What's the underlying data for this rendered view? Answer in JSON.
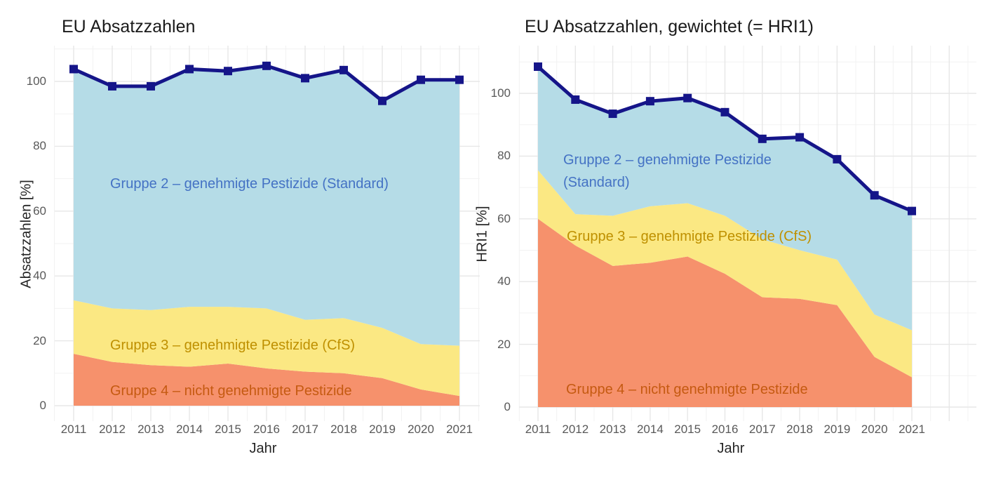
{
  "colors": {
    "total_line": "#151589",
    "area_gruppe2": "#B5DCE7",
    "area_gruppe3": "#FBE883",
    "area_gruppe4": "#F6916C",
    "label_gruppe2": "#4472C4",
    "label_gruppe3": "#BF9000",
    "label_gruppe4": "#C55A11",
    "axis_text": "#595959",
    "title_text": "#1A1A1A",
    "grid_major": "#E7E7E7",
    "grid_minor": "#F2F2F2"
  },
  "chart_data": [
    {
      "type": "area",
      "title": "EU Absatzzahlen",
      "xlabel": "Jahr",
      "ylabel": "Absatzzahlen [%]",
      "x": [
        2011,
        2012,
        2013,
        2014,
        2015,
        2016,
        2017,
        2018,
        2019,
        2020,
        2021
      ],
      "y_ticks": [
        0,
        20,
        40,
        60,
        80,
        100
      ],
      "ylim": [
        0,
        110
      ],
      "grid": true,
      "legend_position": "labels inside areas",
      "series": [
        {
          "name": "Gruppe 4 – nicht genehmigte Pestizide",
          "color": "#F6916C",
          "values": [
            16,
            13.5,
            12.5,
            12,
            13,
            11.5,
            10.5,
            10,
            8.5,
            5,
            3
          ],
          "stack_top": [
            16,
            13.5,
            12.5,
            12,
            13,
            11.5,
            10.5,
            10,
            8.5,
            5,
            3
          ]
        },
        {
          "name": "Gruppe 3 – genehmigte Pestizide (CfS)",
          "color": "#FBE883",
          "values": [
            16.5,
            16.5,
            17,
            18.5,
            17.5,
            18.5,
            16,
            17,
            15.5,
            14,
            15.5
          ],
          "stack_top": [
            32.5,
            30,
            29.5,
            30.5,
            30.5,
            30,
            26.5,
            27,
            24,
            19,
            18.5
          ]
        },
        {
          "name": "Gruppe 2 – genehmigte Pestizide (Standard)",
          "color": "#B5DCE7",
          "values": [
            71.3,
            68.5,
            69,
            73.3,
            72.7,
            74.8,
            74.5,
            76.5,
            70,
            81.5,
            82
          ],
          "stack_top": [
            103.8,
            98.5,
            98.5,
            103.8,
            103.2,
            104.8,
            101,
            103.5,
            94,
            100.5,
            100.5
          ]
        }
      ],
      "total_line": {
        "color": "#151589",
        "values": [
          103.8,
          98.5,
          98.5,
          103.8,
          103.2,
          104.8,
          101,
          103.5,
          94,
          100.5,
          100.5
        ]
      },
      "annotations": [
        {
          "text": "Gruppe 2 – genehmigte Pestizide (Standard)",
          "color": "#4472C4"
        },
        {
          "text": "Gruppe 3 – genehmigte Pestizide (CfS)",
          "color": "#BF9000"
        },
        {
          "text": "Gruppe 4 – nicht genehmigte Pestizide",
          "color": "#C55A11"
        }
      ]
    },
    {
      "type": "area",
      "title": "EU Absatzzahlen, gewichtet (= HRI1)",
      "xlabel": "Jahr",
      "ylabel": "HRI1 [%]",
      "x": [
        2011,
        2012,
        2013,
        2014,
        2015,
        2016,
        2017,
        2018,
        2019,
        2020,
        2021
      ],
      "y_ticks": [
        0,
        20,
        40,
        60,
        80,
        100
      ],
      "ylim": [
        0,
        110
      ],
      "grid": true,
      "legend_position": "labels inside areas",
      "series": [
        {
          "name": "Gruppe 4 – nicht genehmigte Pestizide",
          "color": "#F6916C",
          "values": [
            60,
            51.5,
            45,
            46,
            48,
            42.5,
            35,
            34.5,
            32.5,
            16,
            9.5
          ],
          "stack_top": [
            60,
            51.5,
            45,
            46,
            48,
            42.5,
            35,
            34.5,
            32.5,
            16,
            9.5
          ]
        },
        {
          "name": "Gruppe 3 – genehmigte Pestizide (CfS)",
          "color": "#FBE883",
          "values": [
            15.5,
            10,
            16,
            18,
            17,
            18.5,
            18.5,
            15.5,
            14.5,
            13.5,
            15
          ],
          "stack_top": [
            75.5,
            61.5,
            61,
            64,
            65,
            61,
            53.5,
            50,
            47,
            29.5,
            24.5
          ]
        },
        {
          "name": "Gruppe 2 – genehmigte Pestizide (Standard)",
          "color": "#B5DCE7",
          "values": [
            33,
            36.5,
            32.5,
            33.5,
            33.5,
            33,
            32,
            36,
            32,
            38,
            38
          ],
          "stack_top": [
            108.5,
            98,
            93.5,
            97.5,
            98.5,
            94,
            85.5,
            86,
            79,
            67.5,
            62.5
          ]
        }
      ],
      "total_line": {
        "color": "#151589",
        "values": [
          108.5,
          98,
          93.5,
          97.5,
          98.5,
          94,
          85.5,
          86,
          79,
          67.5,
          62.5
        ]
      },
      "annotations": [
        {
          "text": "Gruppe 2 – genehmigte Pestizide (Standard)",
          "color": "#4472C4"
        },
        {
          "text": "Gruppe 3 – genehmigte Pestizide (CfS)",
          "color": "#BF9000"
        },
        {
          "text": "Gruppe 4 – nicht genehmigte Pestizide",
          "color": "#C55A11"
        }
      ]
    }
  ]
}
